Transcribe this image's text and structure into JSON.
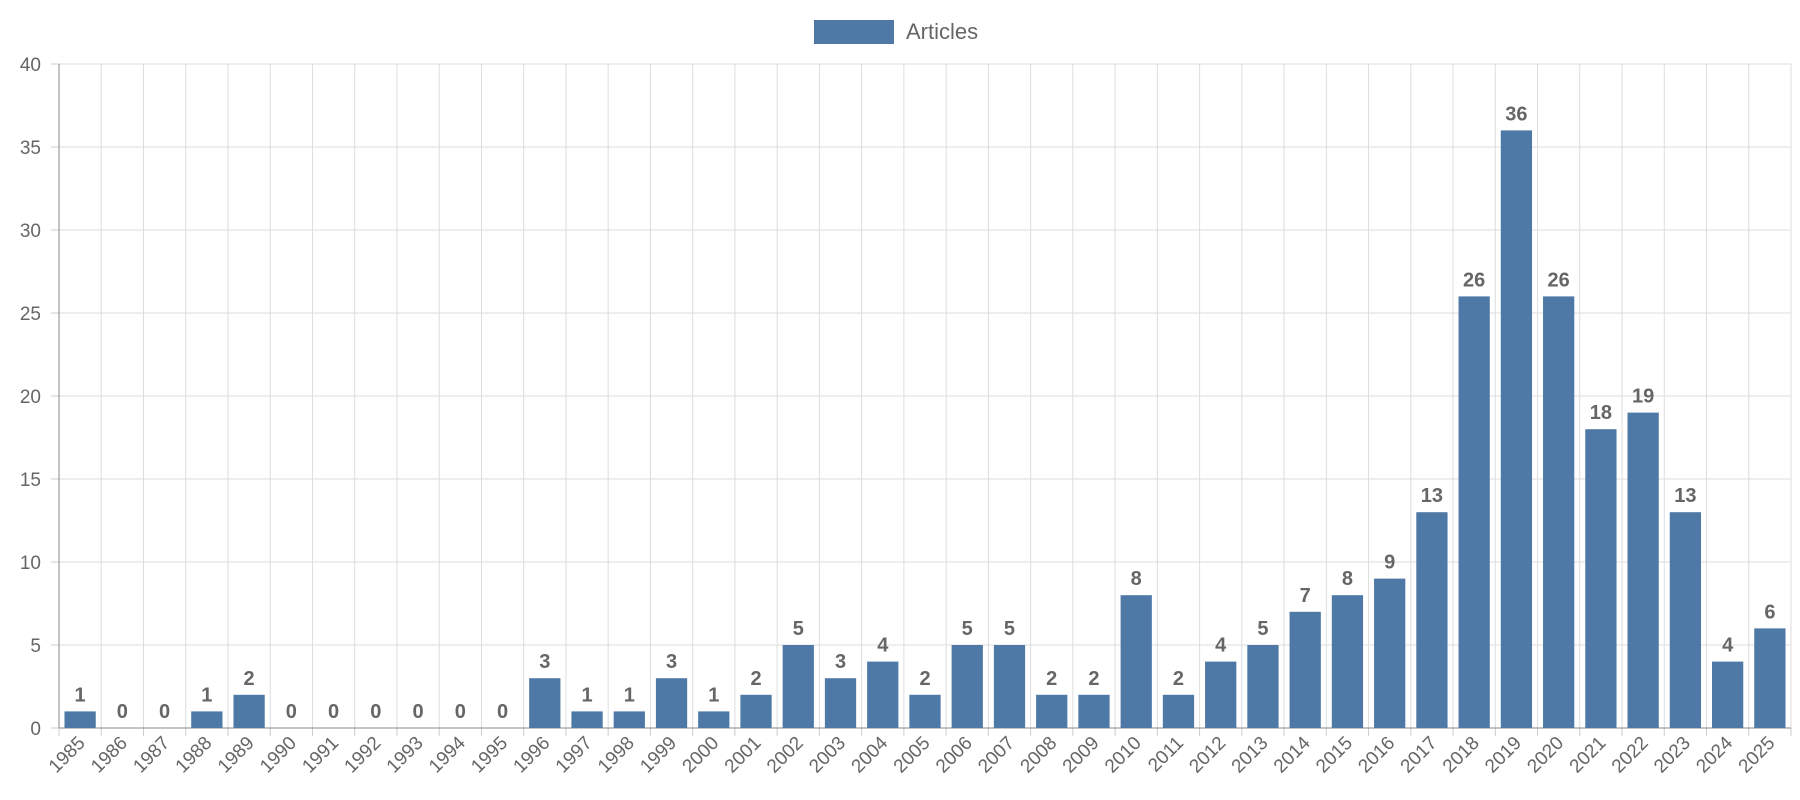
{
  "chart_data": {
    "type": "bar",
    "legend": {
      "label": "Articles",
      "position": "top"
    },
    "series": [
      {
        "name": "Articles",
        "color": "#4e79a7",
        "values": [
          1,
          0,
          0,
          1,
          2,
          0,
          0,
          0,
          0,
          0,
          0,
          3,
          1,
          1,
          3,
          1,
          2,
          5,
          3,
          4,
          2,
          5,
          5,
          2,
          2,
          8,
          2,
          4,
          5,
          7,
          8,
          9,
          13,
          26,
          36,
          26,
          18,
          19,
          13,
          4,
          6
        ]
      }
    ],
    "categories": [
      "1985",
      "1986",
      "1987",
      "1988",
      "1989",
      "1990",
      "1991",
      "1992",
      "1993",
      "1994",
      "1995",
      "1996",
      "1997",
      "1998",
      "1999",
      "2000",
      "2001",
      "2002",
      "2003",
      "2004",
      "2005",
      "2006",
      "2007",
      "2008",
      "2009",
      "2010",
      "2011",
      "2012",
      "2013",
      "2014",
      "2015",
      "2016",
      "2017",
      "2018",
      "2019",
      "2020",
      "2021",
      "2022",
      "2023",
      "2024",
      "2025"
    ],
    "y_ticks": [
      "0",
      "5",
      "10",
      "15",
      "20",
      "25",
      "30",
      "35",
      "40"
    ],
    "ylim": [
      0,
      40
    ],
    "grid": true,
    "data_labels": true
  }
}
